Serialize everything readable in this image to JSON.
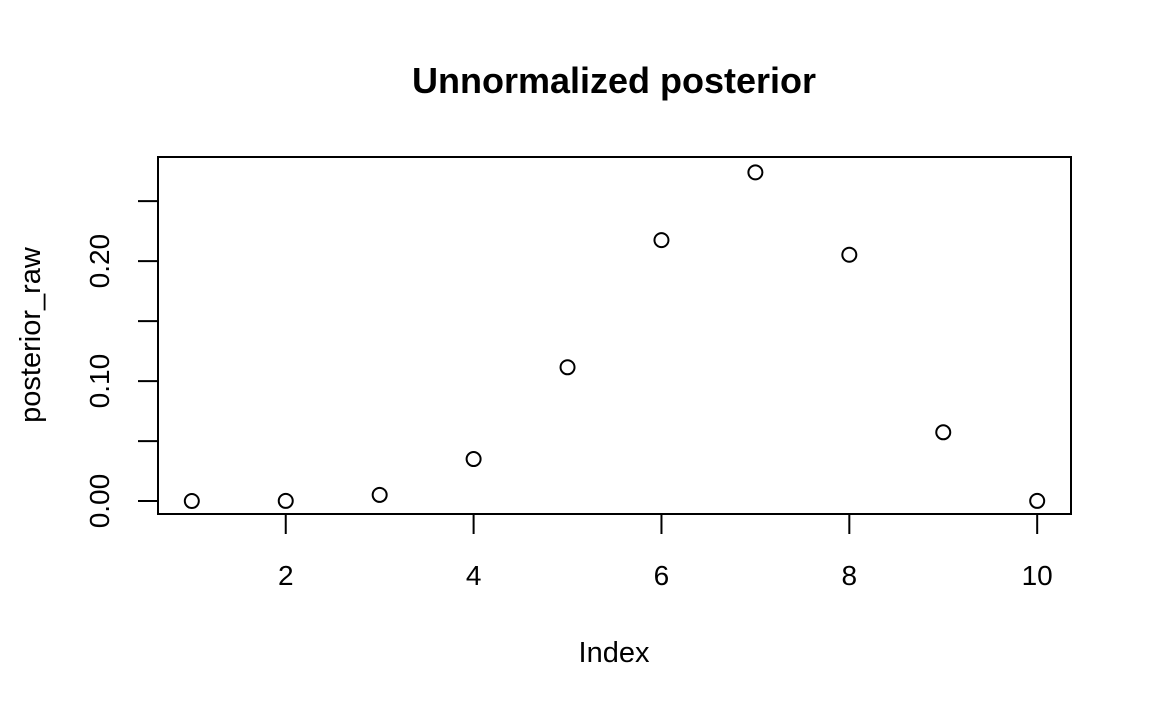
{
  "chart_data": {
    "type": "scatter",
    "title": "Unnormalized posterior",
    "xlabel": "Index",
    "ylabel": "posterior_raw",
    "xlim": [
      0.64,
      10.36
    ],
    "ylim": [
      -0.0108,
      0.2868
    ],
    "x_ticks": [
      2,
      4,
      6,
      8,
      10
    ],
    "x_tick_labels": [
      "2",
      "4",
      "6",
      "8",
      "10"
    ],
    "y_ticks": [
      0.0,
      0.05,
      0.1,
      0.15,
      0.2,
      0.25
    ],
    "y_tick_labels": [
      "0.00",
      "",
      "0.10",
      "",
      "0.20",
      ""
    ],
    "grid": false,
    "marker": "open-circle",
    "series": [
      {
        "x": [
          1,
          2,
          3,
          4,
          5,
          6,
          7,
          8,
          9,
          10
        ],
        "values": [
          0.0,
          0.0001,
          0.0051,
          0.035,
          0.1115,
          0.2175,
          0.274,
          0.2053,
          0.0573,
          0.0001
        ]
      }
    ]
  }
}
